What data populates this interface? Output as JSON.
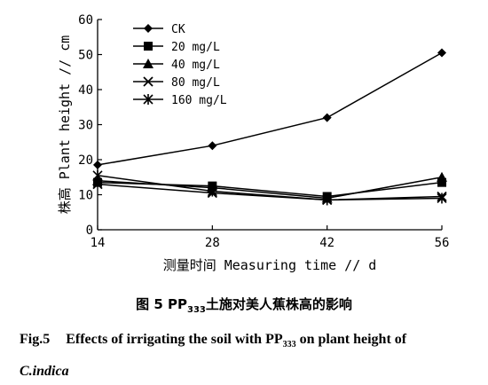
{
  "chart_data": {
    "type": "line",
    "x": [
      14,
      28,
      42,
      56
    ],
    "xlabel": "测量时间 Measuring time // d",
    "ylabel": "株高 Plant height // cm",
    "ylim": [
      0,
      60
    ],
    "yticks": [
      0,
      10,
      20,
      30,
      40,
      50,
      60
    ],
    "grid": false,
    "legend": "top-left",
    "series": [
      {
        "name": "CK",
        "marker": "diamond",
        "values": [
          18.5,
          24,
          32,
          50.5
        ]
      },
      {
        "name": "20 mg/L",
        "marker": "square",
        "values": [
          13.5,
          12.5,
          9.5,
          13.5
        ]
      },
      {
        "name": "40 mg/L",
        "marker": "triangle",
        "values": [
          14,
          12,
          9,
          15
        ]
      },
      {
        "name": "80 mg/L",
        "marker": "x",
        "values": [
          13,
          10.5,
          8.5,
          9.5
        ]
      },
      {
        "name": "160 mg/L",
        "marker": "star",
        "values": [
          15.5,
          11,
          8.5,
          9
        ]
      }
    ]
  },
  "caption": {
    "cn_prefix": "图 5   PP",
    "cn_sub": "333",
    "cn_rest": "土施对美人蕉株高的影响",
    "en_label": "Fig.5",
    "en_text_1": "Effects of irrigating the soil with PP",
    "en_sub": "333",
    "en_text_2": " on plant height of",
    "en_species": "C.indica"
  }
}
